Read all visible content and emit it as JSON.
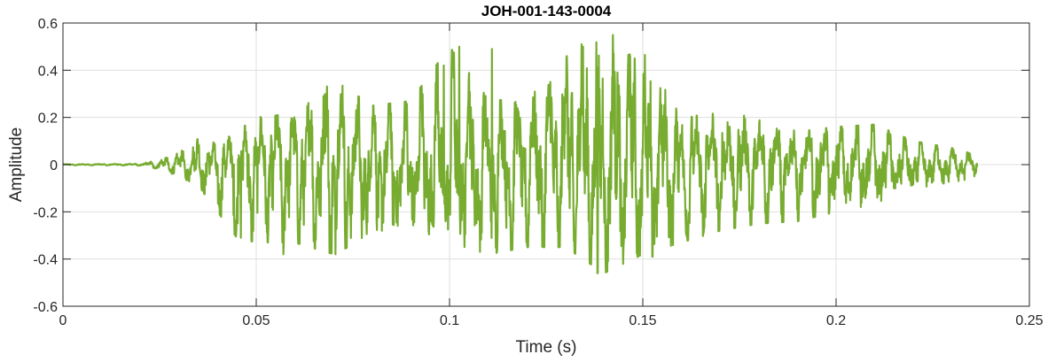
{
  "chart_data": {
    "type": "line",
    "title": "JOH-001-143-0004",
    "xlabel": "Time (s)",
    "ylabel": "Amplitude",
    "xlim": [
      0,
      0.25
    ],
    "ylim": [
      -0.6,
      0.6
    ],
    "xticks": [
      0,
      0.05,
      0.1,
      0.15,
      0.2,
      0.25
    ],
    "xtick_labels": [
      "0",
      "0.05",
      "0.1",
      "0.15",
      "0.2",
      "0.25"
    ],
    "yticks": [
      -0.6,
      -0.4,
      -0.2,
      0,
      0.2,
      0.4,
      0.6
    ],
    "ytick_labels": [
      "-0.6",
      "-0.4",
      "-0.2",
      "0",
      "0.2",
      "0.4",
      "0.6"
    ],
    "grid": true,
    "line_color": "#77AC30",
    "series": [
      {
        "x_start": 0,
        "x_end": 0.2365,
        "envelope": {
          "t": [
            0,
            0.02,
            0.025,
            0.03,
            0.035,
            0.04,
            0.045,
            0.05,
            0.06,
            0.07,
            0.08,
            0.09,
            0.1,
            0.11,
            0.12,
            0.13,
            0.14,
            0.15,
            0.16,
            0.17,
            0.18,
            0.19,
            0.2,
            0.21,
            0.22,
            0.23,
            0.2365
          ],
          "max": [
            0.002,
            0.004,
            0.02,
            0.05,
            0.11,
            0.09,
            0.14,
            0.2,
            0.22,
            0.36,
            0.25,
            0.27,
            0.5,
            0.28,
            0.26,
            0.5,
            0.57,
            0.48,
            0.2,
            0.22,
            0.2,
            0.14,
            0.16,
            0.17,
            0.1,
            0.07,
            0.04
          ],
          "min": [
            -0.002,
            -0.004,
            -0.02,
            -0.05,
            -0.09,
            -0.2,
            -0.31,
            -0.33,
            -0.33,
            -0.38,
            -0.3,
            -0.32,
            -0.33,
            -0.38,
            -0.35,
            -0.35,
            -0.46,
            -0.38,
            -0.33,
            -0.28,
            -0.25,
            -0.24,
            -0.2,
            -0.17,
            -0.11,
            -0.08,
            -0.05
          ]
        },
        "spikes": [
          {
            "x": 0.0705,
            "y": 0.36
          },
          {
            "x": 0.0705,
            "y": -0.38
          },
          {
            "x": 0.0985,
            "y": 0.42
          },
          {
            "x": 0.1025,
            "y": 0.5
          },
          {
            "x": 0.111,
            "y": 0.49
          },
          {
            "x": 0.1345,
            "y": 0.5
          },
          {
            "x": 0.1383,
            "y": 0.57
          },
          {
            "x": 0.1383,
            "y": -0.46
          },
          {
            "x": 0.1525,
            "y": 0.47
          },
          {
            "x": 0.1525,
            "y": -0.39
          },
          {
            "x": 0.057,
            "y": -0.38
          },
          {
            "x": 0.046,
            "y": -0.31
          }
        ]
      }
    ]
  }
}
